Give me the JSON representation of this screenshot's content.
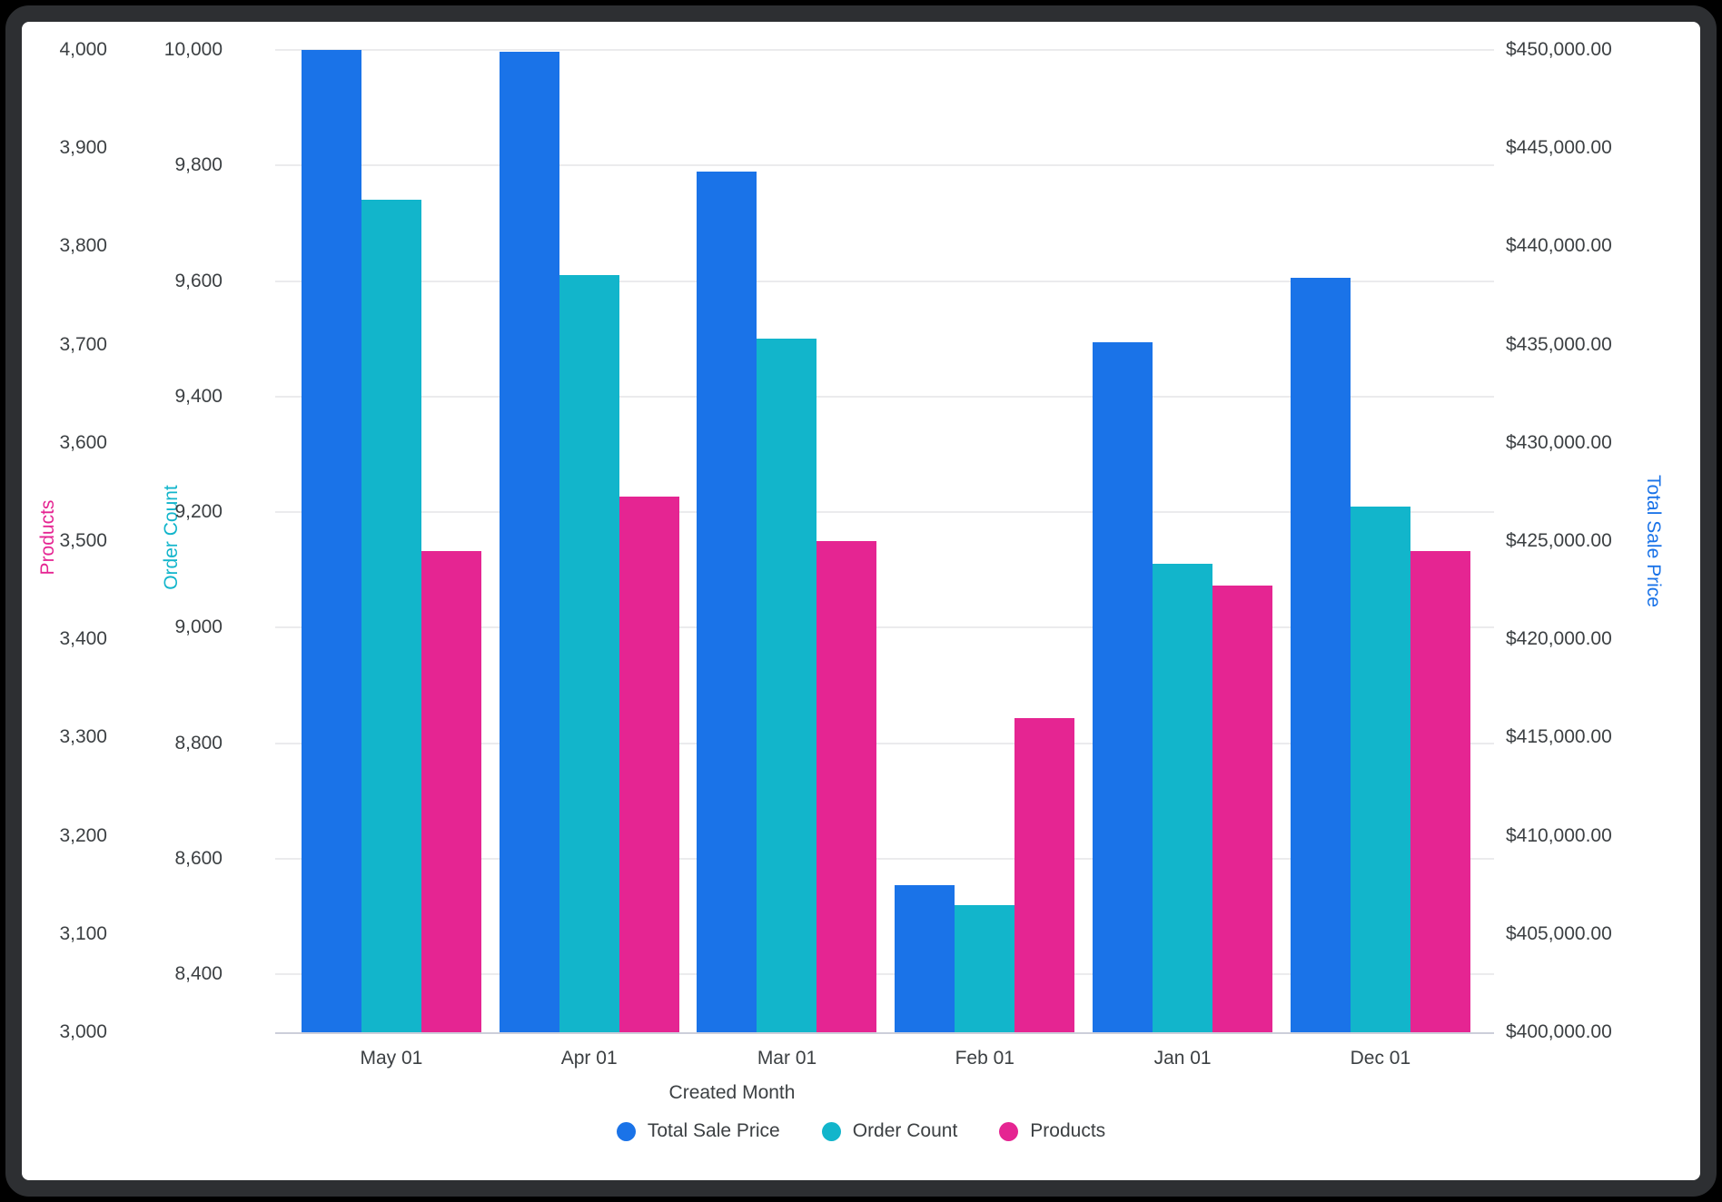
{
  "window": {
    "background_color": "#ffffff",
    "frame_color": "#2d2f32"
  },
  "chart_data": {
    "type": "bar",
    "title": "",
    "xlabel": "Created Month",
    "categories": [
      "May 01",
      "Apr 01",
      "Mar 01",
      "Feb 01",
      "Jan 01",
      "Dec 01"
    ],
    "legend_position": "bottom",
    "grid": "horizontal gridlines at order-count ticks",
    "gridline_color": "#ebebed",
    "baseline_color": "#ccceda",
    "tick_text_color": "#3c4043",
    "series": [
      {
        "name": "Total Sale Price",
        "color": "#1a73e8",
        "axis": "total_sale_price",
        "values": [
          450000,
          449900,
          443800,
          407500,
          435100,
          438400
        ]
      },
      {
        "name": "Order Count",
        "color": "#12b5cb",
        "axis": "order_count",
        "values": [
          9740,
          9610,
          9500,
          8520,
          9110,
          9210
        ]
      },
      {
        "name": "Products",
        "color": "#e52592",
        "axis": "products",
        "values": [
          3490,
          3545,
          3500,
          3320,
          3455,
          3490
        ]
      }
    ],
    "axes": {
      "products": {
        "title": "Products",
        "color": "#e52592",
        "side": "left-outer",
        "min": 3000,
        "top": 4000,
        "ticks": [
          {
            "v": 4000,
            "label": "4,000"
          },
          {
            "v": 3900,
            "label": "3,900"
          },
          {
            "v": 3800,
            "label": "3,800"
          },
          {
            "v": 3700,
            "label": "3,700"
          },
          {
            "v": 3600,
            "label": "3,600"
          },
          {
            "v": 3500,
            "label": "3,500"
          },
          {
            "v": 3400,
            "label": "3,400"
          },
          {
            "v": 3300,
            "label": "3,300"
          },
          {
            "v": 3200,
            "label": "3,200"
          },
          {
            "v": 3100,
            "label": "3,100"
          },
          {
            "v": 3000,
            "label": "3,000"
          }
        ]
      },
      "order_count": {
        "title": "Order Count",
        "color": "#12b5cb",
        "side": "left-inner",
        "min": 8300,
        "top": 10000,
        "ticks": [
          {
            "v": 10000,
            "label": "10,000"
          },
          {
            "v": 9800,
            "label": "9,800"
          },
          {
            "v": 9600,
            "label": "9,600"
          },
          {
            "v": 9400,
            "label": "9,400"
          },
          {
            "v": 9200,
            "label": "9,200"
          },
          {
            "v": 9000,
            "label": "9,000"
          },
          {
            "v": 8800,
            "label": "8,800"
          },
          {
            "v": 8600,
            "label": "8,600"
          },
          {
            "v": 8400,
            "label": "8,400"
          }
        ]
      },
      "total_sale_price": {
        "title": "Total Sale Price",
        "color": "#1a73e8",
        "side": "right",
        "min": 400000,
        "top": 450000,
        "ticks": [
          {
            "v": 450000,
            "label": "$450,000.00"
          },
          {
            "v": 445000,
            "label": "$445,000.00"
          },
          {
            "v": 440000,
            "label": "$440,000.00"
          },
          {
            "v": 435000,
            "label": "$435,000.00"
          },
          {
            "v": 430000,
            "label": "$430,000.00"
          },
          {
            "v": 425000,
            "label": "$425,000.00"
          },
          {
            "v": 420000,
            "label": "$420,000.00"
          },
          {
            "v": 415000,
            "label": "$415,000.00"
          },
          {
            "v": 410000,
            "label": "$410,000.00"
          },
          {
            "v": 405000,
            "label": "$405,000.00"
          },
          {
            "v": 400000,
            "label": "$400,000.00"
          }
        ]
      }
    }
  }
}
